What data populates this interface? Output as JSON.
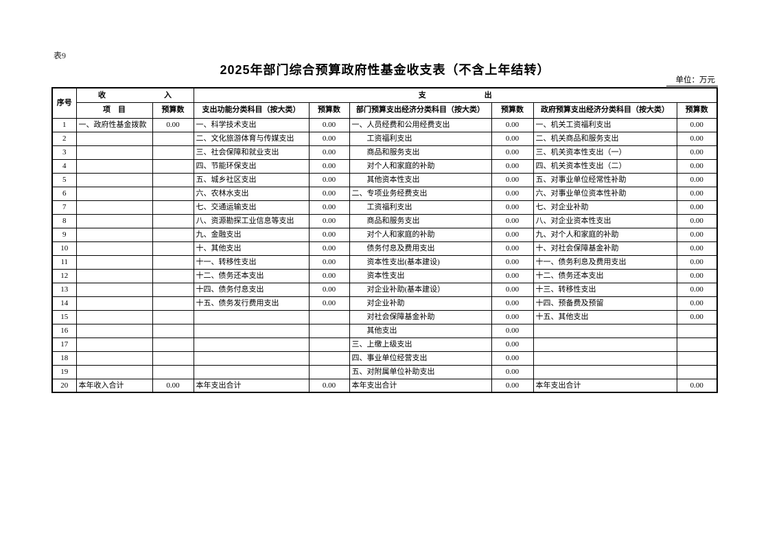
{
  "meta": {
    "table_tag": "表9",
    "title": "2025年部门综合预算政府性基金收支表（不含上年结转）",
    "unit_label": "单位：万元"
  },
  "header": {
    "seq": "序号",
    "income": [
      "收",
      "入"
    ],
    "expense": [
      "支",
      "出"
    ],
    "item": "项　目",
    "budget": "预算数",
    "func_cat": "支出功能分类科目（按大类）",
    "dept_cat": "部门预算支出经济分类科目（按大类）",
    "gov_cat": "政府预算支出经济分类科目（按大类）"
  },
  "rows": [
    {
      "seq": "1",
      "income_item": "一、政府性基金拨款",
      "income_amt": "0.00",
      "func_item": "一、科学技术支出",
      "func_amt": "0.00",
      "dept_item": "一、人员经费和公用经费支出",
      "dept_amt": "0.00",
      "gov_item": "一、机关工资福利支出",
      "gov_amt": "0.00"
    },
    {
      "seq": "2",
      "income_item": "",
      "income_amt": "",
      "func_item": "二、文化旅游体育与传媒支出",
      "func_amt": "0.00",
      "dept_item": "　　工资福利支出",
      "dept_amt": "0.00",
      "gov_item": "二、机关商品和服务支出",
      "gov_amt": "0.00"
    },
    {
      "seq": "3",
      "income_item": "",
      "income_amt": "",
      "func_item": "三、社会保障和就业支出",
      "func_amt": "0.00",
      "dept_item": "　　商品和服务支出",
      "dept_amt": "0.00",
      "gov_item": "三、机关资本性支出（一）",
      "gov_amt": "0.00"
    },
    {
      "seq": "4",
      "income_item": "",
      "income_amt": "",
      "func_item": "四、节能环保支出",
      "func_amt": "0.00",
      "dept_item": "　　对个人和家庭的补助",
      "dept_amt": "0.00",
      "gov_item": "四、机关资本性支出（二）",
      "gov_amt": "0.00"
    },
    {
      "seq": "5",
      "income_item": "",
      "income_amt": "",
      "func_item": "五、城乡社区支出",
      "func_amt": "0.00",
      "dept_item": "　　其他资本性支出",
      "dept_amt": "0.00",
      "gov_item": "五、对事业单位经常性补助",
      "gov_amt": "0.00"
    },
    {
      "seq": "6",
      "income_item": "",
      "income_amt": "",
      "func_item": "六、农林水支出",
      "func_amt": "0.00",
      "dept_item": "二、专项业务经费支出",
      "dept_amt": "0.00",
      "gov_item": "六、对事业单位资本性补助",
      "gov_amt": "0.00"
    },
    {
      "seq": "7",
      "income_item": "",
      "income_amt": "",
      "func_item": "七、交通运输支出",
      "func_amt": "0.00",
      "dept_item": "　　工资福利支出",
      "dept_amt": "0.00",
      "gov_item": "七、对企业补助",
      "gov_amt": "0.00"
    },
    {
      "seq": "8",
      "income_item": "",
      "income_amt": "",
      "func_item": "八、资源勘探工业信息等支出",
      "func_amt": "0.00",
      "dept_item": "　　商品和服务支出",
      "dept_amt": "0.00",
      "gov_item": "八、对企业资本性支出",
      "gov_amt": "0.00"
    },
    {
      "seq": "9",
      "income_item": "",
      "income_amt": "",
      "func_item": "九、金融支出",
      "func_amt": "0.00",
      "dept_item": "　　对个人和家庭的补助",
      "dept_amt": "0.00",
      "gov_item": "九、对个人和家庭的补助",
      "gov_amt": "0.00"
    },
    {
      "seq": "10",
      "income_item": "",
      "income_amt": "",
      "func_item": "十、其他支出",
      "func_amt": "0.00",
      "dept_item": "　　债务付息及费用支出",
      "dept_amt": "0.00",
      "gov_item": "十、对社会保障基金补助",
      "gov_amt": "0.00"
    },
    {
      "seq": "11",
      "income_item": "",
      "income_amt": "",
      "func_item": "十一、转移性支出",
      "func_amt": "0.00",
      "dept_item": "　　资本性支出(基本建设)",
      "dept_amt": "0.00",
      "gov_item": "十一、债务利息及费用支出",
      "gov_amt": "0.00"
    },
    {
      "seq": "12",
      "income_item": "",
      "income_amt": "",
      "func_item": "十二、债务还本支出",
      "func_amt": "0.00",
      "dept_item": "　　资本性支出",
      "dept_amt": "0.00",
      "gov_item": "十二、债务还本支出",
      "gov_amt": "0.00"
    },
    {
      "seq": "13",
      "income_item": "",
      "income_amt": "",
      "func_item": "十四、债务付息支出",
      "func_amt": "0.00",
      "dept_item": "　　对企业补助(基本建设）",
      "dept_amt": "0.00",
      "gov_item": "十三、转移性支出",
      "gov_amt": "0.00"
    },
    {
      "seq": "14",
      "income_item": "",
      "income_amt": "",
      "func_item": "十五、债务发行费用支出",
      "func_amt": "0.00",
      "dept_item": "　　对企业补助",
      "dept_amt": "0.00",
      "gov_item": "十四、预备费及预留",
      "gov_amt": "0.00"
    },
    {
      "seq": "15",
      "income_item": "",
      "income_amt": "",
      "func_item": "",
      "func_amt": "",
      "dept_item": "　　对社会保障基金补助",
      "dept_amt": "0.00",
      "gov_item": "十五、其他支出",
      "gov_amt": "0.00"
    },
    {
      "seq": "16",
      "income_item": "",
      "income_amt": "",
      "func_item": "",
      "func_amt": "",
      "dept_item": "　　其他支出",
      "dept_amt": "0.00",
      "gov_item": "",
      "gov_amt": ""
    },
    {
      "seq": "17",
      "income_item": "",
      "income_amt": "",
      "func_item": "",
      "func_amt": "",
      "dept_item": "三、上缴上级支出",
      "dept_amt": "0.00",
      "gov_item": "",
      "gov_amt": ""
    },
    {
      "seq": "18",
      "income_item": "",
      "income_amt": "",
      "func_item": "",
      "func_amt": "",
      "dept_item": "四、事业单位经营支出",
      "dept_amt": "0.00",
      "gov_item": "",
      "gov_amt": ""
    },
    {
      "seq": "19",
      "income_item": "",
      "income_amt": "",
      "func_item": "",
      "func_amt": "",
      "dept_item": "五、对附属单位补助支出",
      "dept_amt": "0.00",
      "gov_item": "",
      "gov_amt": ""
    },
    {
      "seq": "20",
      "income_item": "本年收入合计",
      "income_amt": "0.00",
      "func_item": "本年支出合计",
      "func_amt": "0.00",
      "dept_item": "本年支出合计",
      "dept_amt": "0.00",
      "gov_item": "本年支出合计",
      "gov_amt": "0.00"
    }
  ]
}
